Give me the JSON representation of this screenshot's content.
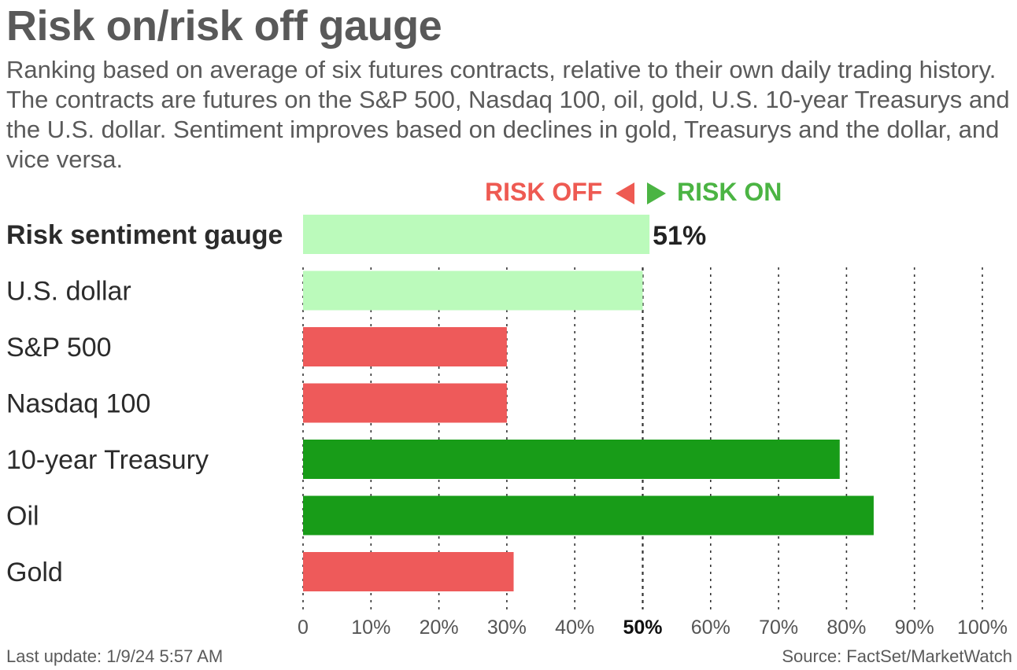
{
  "title": "Risk on/risk off gauge",
  "subtitle": "Ranking based on average of six futures contracts, relative to their own daily trading history. The contracts are futures on the S&P 500, Nasdaq 100, oil, gold, U.S. 10-year Treasurys and the U.S. dollar. Sentiment improves based on declines in gold, Treasurys and the dollar, and vice versa.",
  "legend": {
    "risk_off": "RISK OFF",
    "risk_on": "RISK ON"
  },
  "colors": {
    "gauge_fill": "#bbfabb",
    "risk_off": "#ee5a5a",
    "risk_on": "#189c18",
    "legend_off": "#ee5a52",
    "legend_on": "#4bb443",
    "grid": "#333333"
  },
  "chart_data": {
    "type": "bar",
    "orientation": "horizontal",
    "categories": [
      "Risk sentiment gauge",
      "U.S. dollar",
      "S&P 500",
      "Nasdaq 100",
      "10-year Treasury",
      "Oil",
      "Gold"
    ],
    "values": [
      51,
      50,
      30,
      30,
      79,
      84,
      31
    ],
    "bar_colors": [
      "#bbfabb",
      "#bbfabb",
      "#ee5a5a",
      "#ee5a5a",
      "#189c18",
      "#189c18",
      "#ee5a5a"
    ],
    "value_label": "51%",
    "x_ticks": [
      "0",
      "10%",
      "20%",
      "30%",
      "40%",
      "50%",
      "60%",
      "70%",
      "80%",
      "90%",
      "100%"
    ],
    "xlim": [
      0,
      100
    ],
    "grid": "vertical dotted, 50% line emphasized",
    "legend_placement": "top-center"
  },
  "footer": {
    "updated": "Last update: 1/9/24 5:57 AM",
    "source": "Source: FactSet/MarketWatch"
  }
}
